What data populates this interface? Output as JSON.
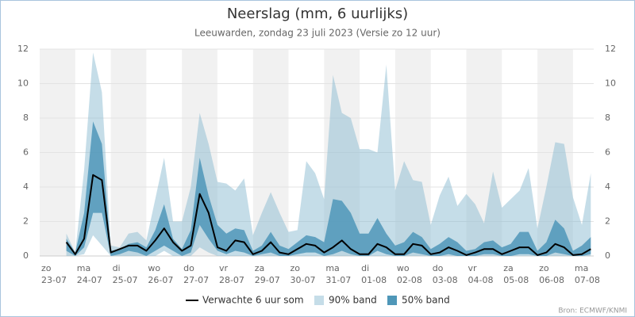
{
  "chart_data": {
    "type": "band_line",
    "title": "Neerslag (mm, 6 uurlijks)",
    "subtitle": "Leeuwarden, zondag 23 juli 2023 (Versie zo 12 uur)",
    "source": "Bron: ECMWF/KNMI",
    "x": [
      "2023-07-23 18:00",
      "2023-07-24 00:00",
      "2023-07-24 06:00",
      "2023-07-24 12:00",
      "2023-07-24 18:00",
      "2023-07-25 00:00",
      "2023-07-25 06:00",
      "2023-07-25 12:00",
      "2023-07-25 18:00",
      "2023-07-26 00:00",
      "2023-07-26 06:00",
      "2023-07-26 12:00",
      "2023-07-26 18:00",
      "2023-07-27 00:00",
      "2023-07-27 06:00",
      "2023-07-27 12:00",
      "2023-07-27 18:00",
      "2023-07-28 00:00",
      "2023-07-28 06:00",
      "2023-07-28 12:00",
      "2023-07-28 18:00",
      "2023-07-29 00:00",
      "2023-07-29 06:00",
      "2023-07-29 12:00",
      "2023-07-29 18:00",
      "2023-07-30 00:00",
      "2023-07-30 06:00",
      "2023-07-30 12:00",
      "2023-07-30 18:00",
      "2023-07-31 00:00",
      "2023-07-31 06:00",
      "2023-07-31 12:00",
      "2023-07-31 18:00",
      "2023-08-01 00:00",
      "2023-08-01 06:00",
      "2023-08-01 12:00",
      "2023-08-01 18:00",
      "2023-08-02 00:00",
      "2023-08-02 06:00",
      "2023-08-02 12:00",
      "2023-08-02 18:00",
      "2023-08-03 00:00",
      "2023-08-03 06:00",
      "2023-08-03 12:00",
      "2023-08-03 18:00",
      "2023-08-04 00:00",
      "2023-08-04 06:00",
      "2023-08-04 12:00",
      "2023-08-04 18:00",
      "2023-08-05 00:00",
      "2023-08-05 06:00",
      "2023-08-05 12:00",
      "2023-08-05 18:00",
      "2023-08-06 00:00",
      "2023-08-06 06:00",
      "2023-08-06 12:00",
      "2023-08-06 18:00",
      "2023-08-07 00:00",
      "2023-08-07 06:00",
      "2023-08-07 12:00"
    ],
    "series": [
      {
        "name": "Verwachte 6 uur som",
        "color": "#000000",
        "values": [
          0.8,
          0.1,
          1.0,
          4.7,
          4.4,
          0.2,
          0.4,
          0.6,
          0.6,
          0.3,
          0.9,
          1.6,
          0.8,
          0.3,
          0.6,
          3.6,
          2.5,
          0.5,
          0.3,
          0.9,
          0.8,
          0.1,
          0.3,
          0.8,
          0.2,
          0.1,
          0.4,
          0.7,
          0.6,
          0.2,
          0.5,
          0.9,
          0.4,
          0.1,
          0.1,
          0.7,
          0.5,
          0.1,
          0.1,
          0.7,
          0.6,
          0.1,
          0.2,
          0.5,
          0.3,
          0.05,
          0.2,
          0.4,
          0.4,
          0.1,
          0.3,
          0.5,
          0.5,
          0.05,
          0.2,
          0.7,
          0.5,
          0.05,
          0.1,
          0.4
        ]
      },
      {
        "name": "90% band",
        "color": "#8bbcd1",
        "low": [
          0,
          0,
          0.1,
          1.2,
          0.6,
          0,
          0,
          0,
          0,
          0,
          0,
          0.3,
          0,
          0,
          0,
          0.5,
          0.2,
          0,
          0,
          0,
          0,
          0,
          0,
          0,
          0,
          0,
          0,
          0,
          0,
          0,
          0,
          0,
          0,
          0,
          0,
          0,
          0,
          0,
          0,
          0,
          0,
          0,
          0,
          0,
          0,
          0,
          0,
          0,
          0,
          0,
          0,
          0,
          0,
          0,
          0,
          0,
          0,
          0,
          0,
          0
        ],
        "high": [
          1.3,
          0.2,
          5,
          11.8,
          9.5,
          0.6,
          0.5,
          1.3,
          1.4,
          0.9,
          3.3,
          5.7,
          2.0,
          2.0,
          4.0,
          8.3,
          6.5,
          4.3,
          4.2,
          3.8,
          4.5,
          1.2,
          2.5,
          3.7,
          2.5,
          1.4,
          1.5,
          5.5,
          4.8,
          3.3,
          10.5,
          8.3,
          8.0,
          6.2,
          6.2,
          6.0,
          11.1,
          3.8,
          5.5,
          4.4,
          4.3,
          1.8,
          3.5,
          4.6,
          2.9,
          3.6,
          3.0,
          1.9,
          4.9,
          2.8,
          3.3,
          3.8,
          5.1,
          1.6,
          4.0,
          6.6,
          6.5,
          3.4,
          1.8,
          4.8
        ]
      },
      {
        "name": "50% band",
        "color": "#4f97b8",
        "low": [
          0.3,
          0,
          0.5,
          2.5,
          2.5,
          0,
          0.1,
          0.3,
          0.2,
          0,
          0.3,
          0.6,
          0.3,
          0,
          0.2,
          1.8,
          1.0,
          0.3,
          0.1,
          0.3,
          0.2,
          0,
          0.1,
          0.2,
          0,
          0,
          0.1,
          0.2,
          0.2,
          0,
          0.1,
          0.3,
          0.1,
          0,
          0,
          0.3,
          0.1,
          0,
          0,
          0.2,
          0.1,
          0,
          0,
          0.1,
          0,
          0,
          0,
          0.1,
          0.1,
          0,
          0,
          0.1,
          0.1,
          0,
          0,
          0.2,
          0.1,
          0,
          0,
          0.1
        ],
        "high": [
          1.0,
          0.2,
          2.5,
          7.8,
          6.5,
          0.3,
          0.4,
          0.7,
          0.8,
          0.5,
          1.5,
          3.0,
          1.0,
          0.4,
          1.5,
          5.7,
          3.5,
          1.8,
          1.3,
          1.6,
          1.5,
          0.3,
          0.6,
          1.4,
          0.6,
          0.4,
          0.8,
          1.2,
          1.1,
          0.8,
          3.3,
          3.2,
          2.5,
          1.3,
          1.3,
          2.2,
          1.3,
          0.6,
          0.8,
          1.4,
          1.1,
          0.4,
          0.7,
          1.1,
          0.8,
          0.3,
          0.4,
          0.8,
          0.9,
          0.5,
          0.7,
          1.4,
          1.4,
          0.3,
          0.8,
          2.1,
          1.6,
          0.3,
          0.6,
          1.1
        ]
      }
    ],
    "xlim": [
      "2023-07-23 00:00",
      "2023-08-07 14:00"
    ],
    "xticks": [
      {
        "value": "2023-07-23 00:00",
        "label": "zo 23-07"
      },
      {
        "value": "2023-07-24 00:00",
        "label": "ma 24-07"
      },
      {
        "value": "2023-07-25 00:00",
        "label": "di 25-07"
      },
      {
        "value": "2023-07-26 00:00",
        "label": "wo 26-07"
      },
      {
        "value": "2023-07-27 00:00",
        "label": "do 27-07"
      },
      {
        "value": "2023-07-28 00:00",
        "label": "vr 28-07"
      },
      {
        "value": "2023-07-29 00:00",
        "label": "za 29-07"
      },
      {
        "value": "2023-07-30 00:00",
        "label": "zo 30-07"
      },
      {
        "value": "2023-07-31 00:00",
        "label": "ma 31-07"
      },
      {
        "value": "2023-08-01 00:00",
        "label": "di 01-08"
      },
      {
        "value": "2023-08-02 00:00",
        "label": "wo 02-08"
      },
      {
        "value": "2023-08-03 00:00",
        "label": "do 03-08"
      },
      {
        "value": "2023-08-04 00:00",
        "label": "vr 04-08"
      },
      {
        "value": "2023-08-05 00:00",
        "label": "za 05-08"
      },
      {
        "value": "2023-08-06 00:00",
        "label": "zo 06-08"
      },
      {
        "value": "2023-08-07 00:00",
        "label": "ma 07-08"
      }
    ],
    "ylim": [
      0,
      12
    ],
    "yticks": [
      0,
      2,
      4,
      6,
      8,
      10,
      12
    ],
    "grid": true
  }
}
